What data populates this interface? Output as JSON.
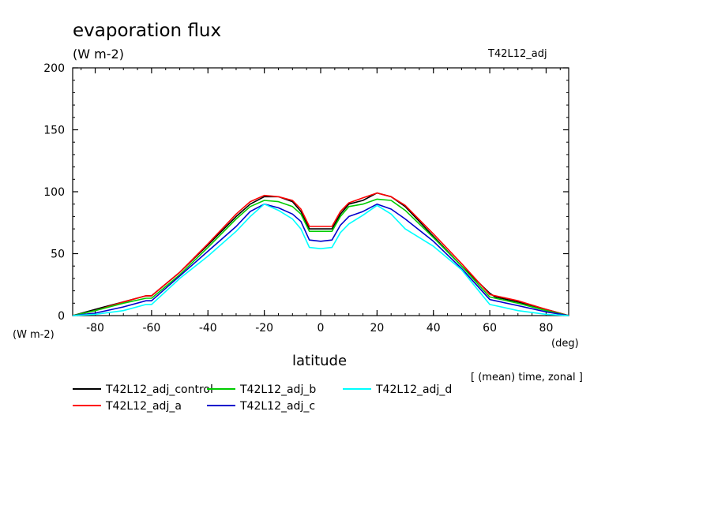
{
  "chart_data": {
    "type": "line",
    "title": "evaporation flux",
    "units": "(W m-2)",
    "experiment": "T42L12_adj",
    "ylabel_units": "(W m-2)",
    "xlabel": "latitude",
    "xlabel_units": "(deg)",
    "note": "[ (mean) time, zonal ]",
    "xlim": [
      -88,
      88
    ],
    "ylim": [
      0,
      200
    ],
    "xticks": [
      "-80",
      "-60",
      "-40",
      "-20",
      "0",
      "20",
      "40",
      "60",
      "80"
    ],
    "yticks": [
      "0",
      "50",
      "100",
      "150",
      "200"
    ],
    "x": [
      -88,
      -80,
      -70,
      -62,
      -60,
      -50,
      -40,
      -30,
      -25,
      -20,
      -15,
      -10,
      -7,
      -4,
      0,
      4,
      7,
      10,
      15,
      20,
      25,
      30,
      40,
      50,
      60,
      62,
      70,
      80,
      88
    ],
    "series": [
      {
        "name": "T42L12_adj_control",
        "color": "#000000",
        "values": [
          0,
          5,
          11,
          16,
          16,
          35,
          57,
          80,
          90,
          96,
          96,
          92,
          84,
          70,
          70,
          70,
          82,
          90,
          93,
          99,
          96,
          88,
          64,
          40,
          18,
          15,
          11,
          5,
          0
        ]
      },
      {
        "name": "T42L12_adj_a",
        "color": "#ff0000",
        "values": [
          0,
          4,
          11,
          16,
          16,
          35,
          58,
          82,
          92,
          97,
          96,
          93,
          86,
          72,
          72,
          72,
          84,
          91,
          95,
          99,
          96,
          89,
          66,
          42,
          17,
          16,
          12,
          5,
          0
        ]
      },
      {
        "name": "T42L12_adj_b",
        "color": "#00cc00",
        "values": [
          0,
          4,
          10,
          14,
          14,
          33,
          55,
          78,
          88,
          93,
          92,
          88,
          82,
          68,
          68,
          68,
          80,
          88,
          90,
          94,
          93,
          85,
          63,
          40,
          15,
          14,
          10,
          4,
          0
        ]
      },
      {
        "name": "T42L12_adj_c",
        "color": "#0000cc",
        "values": [
          0,
          2,
          7,
          12,
          12,
          32,
          52,
          72,
          84,
          90,
          87,
          82,
          76,
          61,
          60,
          61,
          73,
          80,
          84,
          90,
          86,
          78,
          60,
          38,
          13,
          12,
          8,
          3,
          0
        ]
      },
      {
        "name": "T42L12_adj_d",
        "color": "#00ffff",
        "values": [
          0,
          1,
          4,
          9,
          9,
          30,
          48,
          68,
          80,
          90,
          85,
          78,
          70,
          55,
          54,
          55,
          67,
          74,
          81,
          89,
          82,
          70,
          56,
          37,
          9,
          8,
          4,
          1,
          0
        ]
      }
    ]
  }
}
